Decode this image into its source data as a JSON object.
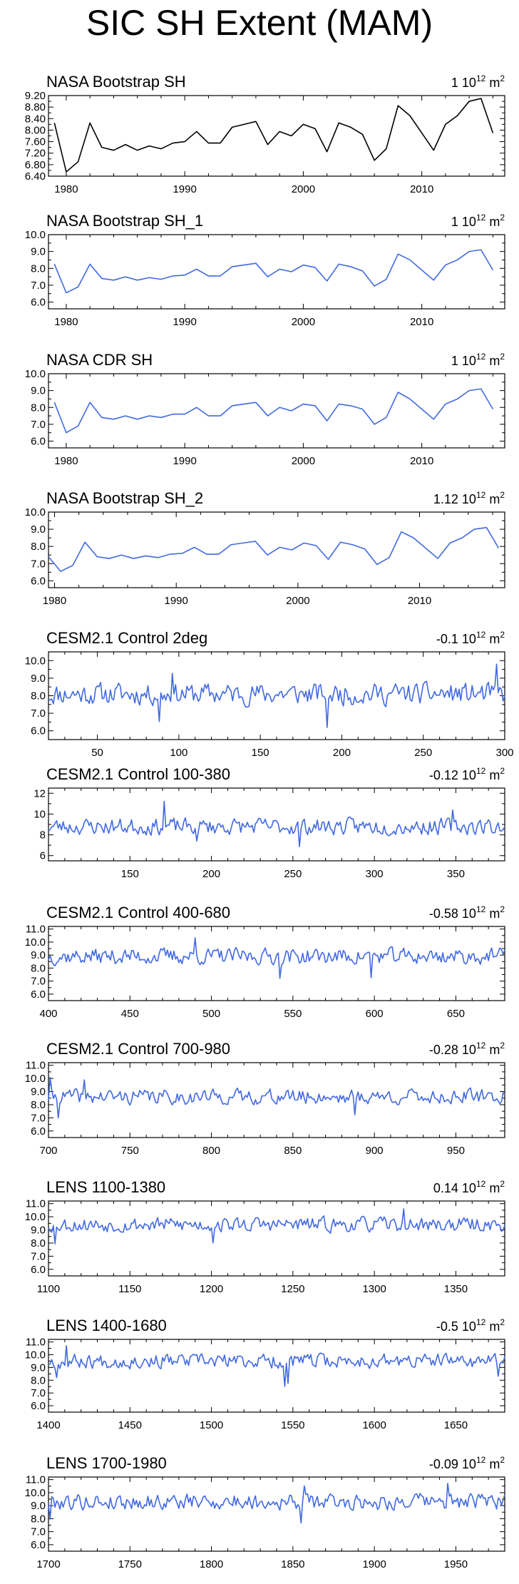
{
  "title": "SIC SH Extent (MAM)",
  "units": "10<sup>12</sup> m<sup>2</sup>",
  "colors": {
    "obs_black": "#000000",
    "blue": "#4169e1"
  },
  "panels": [
    {
      "name": "NASA Bootstrap SH",
      "value_label": "1",
      "units_text": "1 10^12 m^2",
      "color": "#000000",
      "xlim": [
        1978.5,
        2017
      ],
      "ylim": [
        6.4,
        9.2
      ],
      "yticks": [
        "6.40",
        "6.80",
        "7.20",
        "7.60",
        "8.00",
        "8.40",
        "8.80",
        "9.20"
      ],
      "xticks": [
        "1980",
        "1990",
        "2000",
        "2010"
      ],
      "x_start": 1979,
      "x_step": 1,
      "values": [
        8.25,
        6.55,
        6.9,
        8.25,
        7.4,
        7.3,
        7.5,
        7.3,
        7.45,
        7.35,
        7.55,
        7.6,
        7.95,
        7.55,
        7.55,
        8.1,
        8.2,
        8.3,
        7.5,
        7.95,
        7.8,
        8.2,
        8.05,
        7.25,
        8.25,
        8.1,
        7.85,
        6.95,
        7.35,
        8.85,
        8.5,
        7.9,
        7.3,
        8.2,
        8.5,
        9.0,
        9.1,
        7.9
      ]
    },
    {
      "name": "NASA Bootstrap SH_1",
      "value_label": "1",
      "units_text": "1 10^12 m^2",
      "color": "#4169e1",
      "xlim": [
        1978.5,
        2017
      ],
      "ylim": [
        5.6,
        10.0
      ],
      "yticks": [
        "6.0",
        "7.0",
        "8.0",
        "9.0",
        "10.0"
      ],
      "xticks": [
        "1980",
        "1990",
        "2000",
        "2010"
      ],
      "x_start": 1979,
      "x_step": 1,
      "values": [
        8.25,
        6.55,
        6.9,
        8.25,
        7.4,
        7.3,
        7.5,
        7.3,
        7.45,
        7.35,
        7.55,
        7.6,
        7.95,
        7.55,
        7.55,
        8.1,
        8.2,
        8.3,
        7.5,
        7.95,
        7.8,
        8.2,
        8.05,
        7.25,
        8.25,
        8.1,
        7.85,
        6.95,
        7.35,
        8.85,
        8.5,
        7.9,
        7.3,
        8.2,
        8.5,
        9.0,
        9.1,
        7.9
      ]
    },
    {
      "name": "NASA CDR SH",
      "value_label": "1",
      "units_text": "1 10^12 m^2",
      "color": "#4169e1",
      "xlim": [
        1978.5,
        2017
      ],
      "ylim": [
        5.6,
        10.0
      ],
      "yticks": [
        "6.0",
        "7.0",
        "8.0",
        "9.0",
        "10.0"
      ],
      "xticks": [
        "1980",
        "1990",
        "2000",
        "2010"
      ],
      "x_start": 1979,
      "x_step": 1,
      "values": [
        8.3,
        6.5,
        6.9,
        8.3,
        7.4,
        7.3,
        7.5,
        7.3,
        7.5,
        7.4,
        7.6,
        7.6,
        8.0,
        7.5,
        7.5,
        8.1,
        8.2,
        8.3,
        7.5,
        8.0,
        7.8,
        8.2,
        8.1,
        7.2,
        8.2,
        8.1,
        7.9,
        7.0,
        7.4,
        8.9,
        8.5,
        7.9,
        7.3,
        8.2,
        8.5,
        9.0,
        9.1,
        7.9
      ]
    },
    {
      "name": "NASA Bootstrap SH_2",
      "value_label": "1.12",
      "units_text": "1.12 10^12 m^2",
      "color": "#4169e1",
      "xlim": [
        1979.5,
        2017
      ],
      "ylim": [
        5.6,
        10.0
      ],
      "yticks": [
        "6.0",
        "7.0",
        "8.0",
        "9.0",
        "10.0"
      ],
      "xticks": [
        "1980",
        "1990",
        "2000",
        "2010"
      ],
      "x_start": 1979.5,
      "x_step": 1,
      "values": [
        7.4,
        6.55,
        6.9,
        8.25,
        7.4,
        7.3,
        7.5,
        7.3,
        7.45,
        7.35,
        7.55,
        7.6,
        7.95,
        7.55,
        7.55,
        8.1,
        8.2,
        8.3,
        7.5,
        7.95,
        7.8,
        8.2,
        8.05,
        7.25,
        8.25,
        8.1,
        7.85,
        6.95,
        7.35,
        8.85,
        8.5,
        7.9,
        7.3,
        8.2,
        8.5,
        9.0,
        9.1,
        7.9
      ]
    },
    {
      "name": "CESM2.1 Control 2deg",
      "value_label": "-0.1",
      "units_text": "-0.1 10^12 m^2",
      "color": "#4169e1",
      "xlim": [
        20,
        300
      ],
      "ylim": [
        5.5,
        10.5
      ],
      "yticks": [
        "6.0",
        "7.0",
        "8.0",
        "9.0",
        "10.0"
      ],
      "xticks": [
        "50",
        "100",
        "150",
        "200",
        "250",
        "300"
      ],
      "x_start": 20,
      "x_step": 1,
      "mean": 8.1,
      "amp": 0.55,
      "seed": 11,
      "spikes": [
        [
          88,
          -1.6
        ],
        [
          96,
          1.3
        ],
        [
          191,
          -2.0
        ],
        [
          295,
          1.6
        ]
      ]
    },
    {
      "name": "CESM2.1 Control 100-380",
      "value_label": "-0.12",
      "units_text": "-0.12 10^12 m^2",
      "color": "#4169e1",
      "xlim": [
        100,
        380
      ],
      "ylim": [
        5.5,
        12.5
      ],
      "yticks": [
        "6",
        "8",
        "10",
        "12"
      ],
      "xticks": [
        "150",
        "200",
        "250",
        "300",
        "350"
      ],
      "x_start": 100,
      "x_step": 1,
      "mean": 8.8,
      "amp": 0.7,
      "seed": 23,
      "spikes": [
        [
          171,
          2.4
        ],
        [
          191,
          -1.5
        ],
        [
          254,
          -2.0
        ],
        [
          348,
          1.5
        ]
      ]
    },
    {
      "name": "CESM2.1 Control 400-680",
      "value_label": "-0.58",
      "units_text": "-0.58 10^12 m^2",
      "color": "#4169e1",
      "xlim": [
        400,
        680
      ],
      "ylim": [
        5.5,
        11.2
      ],
      "yticks": [
        "6.0",
        "7.0",
        "8.0",
        "9.0",
        "10.0",
        "11.0"
      ],
      "xticks": [
        "400",
        "450",
        "500",
        "550",
        "600",
        "650"
      ],
      "x_start": 400,
      "x_step": 1,
      "mean": 8.9,
      "amp": 0.55,
      "seed": 37,
      "spikes": [
        [
          490,
          1.4
        ],
        [
          542,
          -1.6
        ],
        [
          598,
          -1.6
        ]
      ]
    },
    {
      "name": "CESM2.1 Control 700-980",
      "value_label": "-0.28",
      "units_text": "-0.28 10^12 m^2",
      "color": "#4169e1",
      "xlim": [
        700,
        980
      ],
      "ylim": [
        5.5,
        11.2
      ],
      "yticks": [
        "6.0",
        "7.0",
        "8.0",
        "9.0",
        "10.0",
        "11.0"
      ],
      "xticks": [
        "700",
        "750",
        "800",
        "850",
        "900",
        "950"
      ],
      "x_start": 700,
      "x_step": 1,
      "mean": 8.6,
      "amp": 0.5,
      "seed": 41,
      "spikes": [
        [
          701,
          1.4
        ],
        [
          706,
          -1.5
        ],
        [
          722,
          1.2
        ],
        [
          888,
          -1.4
        ]
      ]
    },
    {
      "name": "LENS 1100-1380",
      "value_label": "0.14",
      "units_text": "0.14 10^12 m^2",
      "color": "#4169e1",
      "xlim": [
        1100,
        1380
      ],
      "ylim": [
        5.5,
        11.2
      ],
      "yticks": [
        "6.0",
        "7.0",
        "8.0",
        "9.0",
        "10.0",
        "11.0"
      ],
      "xticks": [
        "1100",
        "1150",
        "1200",
        "1250",
        "1300",
        "1350"
      ],
      "x_start": 1100,
      "x_step": 1,
      "mean": 9.4,
      "amp": 0.5,
      "seed": 53,
      "spikes": [
        [
          1104,
          -1.5
        ],
        [
          1201,
          -1.3
        ],
        [
          1318,
          1.1
        ]
      ]
    },
    {
      "name": "LENS 1400-1680",
      "value_label": "-0.5",
      "units_text": "-0.5 10^12 m^2",
      "color": "#4169e1",
      "xlim": [
        1400,
        1680
      ],
      "ylim": [
        5.5,
        11.2
      ],
      "yticks": [
        "6.0",
        "7.0",
        "8.0",
        "9.0",
        "10.0",
        "11.0"
      ],
      "xticks": [
        "1400",
        "1450",
        "1500",
        "1550",
        "1600",
        "1650"
      ],
      "x_start": 1400,
      "x_step": 1,
      "mean": 9.5,
      "amp": 0.5,
      "seed": 67,
      "spikes": [
        [
          1405,
          -1.3
        ],
        [
          1411,
          1.2
        ],
        [
          1545,
          -2.0
        ],
        [
          1547,
          -1.8
        ],
        [
          1676,
          -1.2
        ]
      ]
    },
    {
      "name": "LENS 1700-1980",
      "value_label": "-0.09",
      "units_text": "-0.09 10^12 m^2",
      "color": "#4169e1",
      "xlim": [
        1700,
        1980
      ],
      "ylim": [
        5.5,
        11.2
      ],
      "yticks": [
        "6.0",
        "7.0",
        "8.0",
        "9.0",
        "10.0",
        "11.0"
      ],
      "xticks": [
        "1700",
        "1750",
        "1800",
        "1850",
        "1900",
        "1950"
      ],
      "x_start": 1700,
      "x_step": 1,
      "mean": 9.3,
      "amp": 0.55,
      "seed": 79,
      "spikes": [
        [
          1701,
          -1.3
        ],
        [
          1855,
          -1.6
        ],
        [
          1857,
          1.2
        ],
        [
          1945,
          1.4
        ]
      ]
    }
  ],
  "chart_data": [
    {
      "type": "line",
      "title": "NASA Bootstrap SH",
      "xlim": [
        1978.5,
        2017
      ],
      "ylim": [
        6.4,
        9.2
      ],
      "x": "1979..2016",
      "values": [
        8.25,
        6.55,
        6.9,
        8.25,
        7.4,
        7.3,
        7.5,
        7.3,
        7.45,
        7.35,
        7.55,
        7.6,
        7.95,
        7.55,
        7.55,
        8.1,
        8.2,
        8.3,
        7.5,
        7.95,
        7.8,
        8.2,
        8.05,
        7.25,
        8.25,
        8.1,
        7.85,
        6.95,
        7.35,
        8.85,
        8.5,
        7.9,
        7.3,
        8.2,
        8.5,
        9.0,
        9.1,
        7.9
      ]
    },
    {
      "type": "line",
      "title": "NASA Bootstrap SH_1",
      "xlim": [
        1978.5,
        2017
      ],
      "ylim": [
        5.6,
        10.0
      ]
    },
    {
      "type": "line",
      "title": "NASA CDR SH",
      "xlim": [
        1978.5,
        2017
      ],
      "ylim": [
        5.6,
        10.0
      ]
    },
    {
      "type": "line",
      "title": "NASA Bootstrap SH_2",
      "xlim": [
        1979.5,
        2017
      ],
      "ylim": [
        5.6,
        10.0
      ]
    },
    {
      "type": "line",
      "title": "CESM2.1 Control 2deg",
      "xlim": [
        20,
        300
      ],
      "ylim": [
        5.5,
        10.5
      ]
    },
    {
      "type": "line",
      "title": "CESM2.1 Control 100-380",
      "xlim": [
        100,
        380
      ],
      "ylim": [
        5.5,
        12.5
      ]
    },
    {
      "type": "line",
      "title": "CESM2.1 Control 400-680",
      "xlim": [
        400,
        680
      ],
      "ylim": [
        5.5,
        11.2
      ]
    },
    {
      "type": "line",
      "title": "CESM2.1 Control 700-980",
      "xlim": [
        700,
        980
      ],
      "ylim": [
        5.5,
        11.2
      ]
    },
    {
      "type": "line",
      "title": "LENS 1100-1380",
      "xlim": [
        1100,
        1380
      ],
      "ylim": [
        5.5,
        11.2
      ]
    },
    {
      "type": "line",
      "title": "LENS 1400-1680",
      "xlim": [
        1400,
        1680
      ],
      "ylim": [
        5.5,
        11.2
      ]
    },
    {
      "type": "line",
      "title": "LENS 1700-1980",
      "xlim": [
        1700,
        1980
      ],
      "ylim": [
        5.5,
        11.2
      ]
    }
  ]
}
